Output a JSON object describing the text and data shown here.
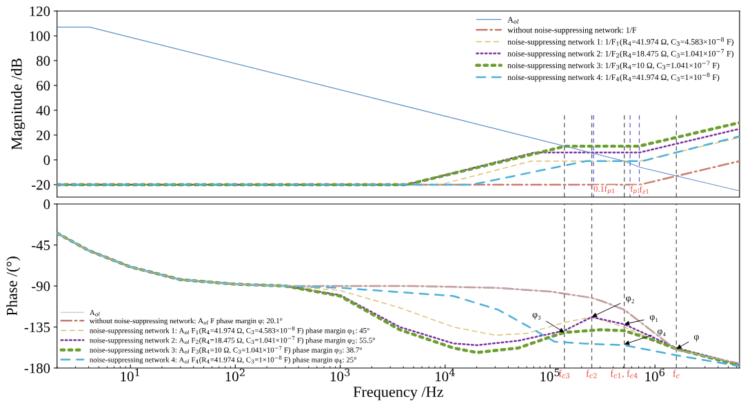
{
  "chart_data": [
    {
      "type": "line",
      "log": "x",
      "ylabel": "Magnitude /dB",
      "xlim": [
        2,
        6400000
      ],
      "ylim": [
        -30,
        120
      ],
      "yticks": [
        -20,
        0,
        20,
        40,
        60,
        80,
        100,
        120
      ],
      "tick_labels": "y",
      "legend": "top right",
      "grid": false,
      "series": [
        {
          "name": "A$_{ol}$",
          "color": "#5b8fc9",
          "line_style": "solid",
          "x": [
            2,
            4.1,
            2800,
            510000,
            720000,
            6400000
          ],
          "values": [
            107,
            107,
            47,
            -1,
            -6,
            -25
          ]
        },
        {
          "name": "without noise-suppressing network: 1/F",
          "color": "#c97b6b",
          "line_style": "dashdot",
          "x": [
            2,
            720000,
            6400000
          ],
          "values": [
            -20,
            -20,
            -1
          ]
        },
        {
          "name": "noise-suppressing network 1: 1/F$_{1}$(R$_{4}$=41.974 Ω, C$_{3}$=4.583×10$^{−8}$ F)",
          "color": "#d9bd6a",
          "line_style": "dashed",
          "x": [
            2,
            9000,
            66000,
            720000,
            6400000
          ],
          "values": [
            -20,
            -20,
            -1,
            -1,
            18
          ]
        },
        {
          "name": "noise-suppressing network 2: 1/F$_{2}$(R$_{4}$=18.475 Ω, C$_{3}$=1.041×10$^{−7}$ F)",
          "color": "#7b2fa0",
          "line_style": "dotted",
          "x": [
            2,
            4300,
            72000,
            720000,
            6400000
          ],
          "values": [
            -20,
            -20,
            6,
            6,
            25
          ]
        },
        {
          "name": "noise-suppressing network 3: 1/F$_{3}$(R$_{4}$=10 Ω, C$_{3}$=1.041×10$^{−7}$ F)",
          "color": "#6b9e2f",
          "line_style": "dotted",
          "x": [
            2,
            4300,
            140000,
            700000,
            6400000
          ],
          "values": [
            -20,
            -20,
            11,
            11,
            30
          ]
        },
        {
          "name": "noise-suppressing network 4: 1/F$_{4}$(R$_{4}$=41.974 Ω, C$_{3}$=1×10$^{−8}$ F)",
          "color": "#4bb0d8",
          "line_style": "dashed",
          "x": [
            2,
            18000,
            220000,
            760000,
            6400000
          ],
          "values": [
            -20,
            -20,
            -1,
            -1,
            19
          ]
        }
      ],
      "ref_lines": [
        {
          "axis": "x",
          "value": 137000,
          "label": null,
          "color": "#555555",
          "line_style": "dashed"
        },
        {
          "axis": "x",
          "value": 250000,
          "label": null,
          "color": "#555555",
          "line_style": "dashed"
        },
        {
          "axis": "x",
          "value": 260000,
          "label": "0.1f$_{p1}$",
          "color": "#5a5ad0",
          "line_style": "dashed"
        },
        {
          "axis": "x",
          "value": 510000,
          "label": null,
          "color": "#555555",
          "line_style": "dashed"
        },
        {
          "axis": "x",
          "value": 580000,
          "label": "f$_{p1}$",
          "color": "#5a5ad0",
          "line_style": "dashed"
        },
        {
          "axis": "x",
          "value": 710000,
          "label": "f$_{z1}$",
          "color": "#5a5ad0",
          "line_style": "dashed"
        },
        {
          "axis": "x",
          "value": 1600000,
          "label": null,
          "color": "#555555",
          "line_style": "dashed"
        }
      ]
    },
    {
      "type": "line",
      "log": "x",
      "xlabel": "Frequency /Hz",
      "ylabel": "Phase /(°)",
      "xlim": [
        2,
        6400000
      ],
      "ylim": [
        -180,
        0
      ],
      "yticks": [
        -180,
        -135,
        -90,
        -45,
        0
      ],
      "xticks": [
        {
          "value": 10,
          "label": "10$^{1}$"
        },
        {
          "value": 100,
          "label": "10$^{2}$"
        },
        {
          "value": 1000,
          "label": "10$^{3}$"
        },
        {
          "value": 10000,
          "label": "10$^{4}$"
        },
        {
          "value": 100000,
          "label": "10$^{5}$"
        },
        {
          "value": 1000000,
          "label": "10$^{6}$"
        }
      ],
      "legend": "bottom left",
      "grid": false,
      "series": [
        {
          "name": "A$_{ol}$",
          "color": "#b8b8c8",
          "line_style": "solid",
          "x": [
            2,
            4,
            10,
            30,
            100,
            300,
            5000,
            30000,
            100000,
            250000,
            320000,
            510000,
            1600000,
            6400000
          ],
          "values": [
            -32,
            -51,
            -69,
            -83,
            -88,
            -90,
            -90,
            -92,
            -96,
            -103,
            -107,
            -116,
            -160,
            -175
          ]
        },
        {
          "name": "without noise-suppressing network: A$_{ol}$ F phase margin φ: 20.1°",
          "color": "#c97b6b",
          "line_style": "dashdot",
          "x": [
            2,
            4,
            10,
            30,
            100,
            300,
            5000,
            30000,
            100000,
            250000,
            320000,
            510000,
            1600000,
            6400000
          ],
          "values": [
            -32,
            -51,
            -69,
            -83,
            -88,
            -90,
            -90,
            -92,
            -96,
            -103,
            -107,
            -116,
            -160,
            -175
          ]
        },
        {
          "name": "noise-suppressing network 1: A$_{ol}$ F$_{1}$(R$_{4}$=41.974 Ω, C$_{3}$=4.583×10$^{−8}$ F) phase margin φ$_{1}$: 45°",
          "color": "#d9bd6a",
          "line_style": "dashed",
          "x": [
            2,
            4,
            10,
            30,
            100,
            300,
            1000,
            3500,
            12000,
            30000,
            60000,
            137000,
            250000,
            510000,
            1600000,
            6400000
          ],
          "values": [
            -32,
            -51,
            -69,
            -83,
            -88,
            -90,
            -95,
            -113,
            -135,
            -144,
            -142,
            -130,
            -124,
            -135,
            -160,
            -176
          ]
        },
        {
          "name": "noise-suppressing network 2: A$_{ol}$ F$_{2}$(R$_{4}$=18.475 Ω, C$_{3}$=1.041×10$^{−7}$ F) phase margin φ$_{2}$: 55.5°",
          "color": "#7b2fa0",
          "line_style": "dotted",
          "x": [
            2,
            4,
            10,
            30,
            100,
            300,
            1000,
            3700,
            12000,
            20000,
            50000,
            137000,
            250000,
            510000,
            1600000,
            6400000
          ],
          "values": [
            -32,
            -51,
            -69,
            -83,
            -88,
            -90,
            -100,
            -135,
            -153,
            -155,
            -150,
            -139,
            -124,
            -132,
            -158,
            -176
          ]
        },
        {
          "name": "noise-suppressing network 3: A$_{ol}$ F$_{3}$(R$_{4}$=10 Ω, C$_{3}$=1.041×10$^{−7}$ F) phase margin φ$_{3}$: 38.7°",
          "color": "#6b9e2f",
          "line_style": "dotted",
          "x": [
            2,
            4,
            10,
            30,
            100,
            300,
            1000,
            3700,
            12000,
            20000,
            50000,
            100000,
            137000,
            300000,
            510000,
            1000000,
            1600000,
            6400000
          ],
          "values": [
            -32,
            -51,
            -69,
            -83,
            -88,
            -90,
            -101,
            -138,
            -158,
            -163,
            -158,
            -146,
            -141,
            -138,
            -139,
            -150,
            -159,
            -177
          ]
        },
        {
          "name": "noise-suppressing network 4: A$_{ol}$ F$_{4}$(R$_{4}$=41.974 Ω, C$_{3}$=1×10$^{−8}$ F) phase margin φ$_{4}$: 25°",
          "color": "#4bb0d8",
          "line_style": "dashed",
          "x": [
            2,
            4,
            10,
            30,
            100,
            300,
            1000,
            12000,
            32000,
            68000,
            110000,
            200000,
            510000,
            1600000,
            6400000
          ],
          "values": [
            -32,
            -51,
            -69,
            -83,
            -88,
            -90,
            -92,
            -101,
            -116,
            -137,
            -151,
            -153,
            -155,
            -166,
            -178
          ]
        }
      ],
      "ref_lines": [
        {
          "axis": "x",
          "value": 137000,
          "label": "f$_{c3}$",
          "color": "#555555",
          "line_style": "dashed"
        },
        {
          "axis": "x",
          "value": 250000,
          "label": "f$_{c2}$",
          "color": "#555555",
          "line_style": "dashed"
        },
        {
          "axis": "x",
          "value": 510000,
          "label": "f$_{c1}$, f$_{c4}$",
          "color": "#555555",
          "line_style": "dashed"
        },
        {
          "axis": "x",
          "value": 1600000,
          "label": "f$_{c}$",
          "color": "#555555",
          "line_style": "dashed"
        }
      ],
      "annotations": [
        {
          "text": "φ₃",
          "x": 137000,
          "y": -141
        },
        {
          "text": "φ₂",
          "x": 250000,
          "y": -124
        },
        {
          "text": "φ₁",
          "x": 510000,
          "y": -132
        },
        {
          "text": "φ₄",
          "x": 510000,
          "y": -154
        },
        {
          "text": "φ",
          "x": 1600000,
          "y": -159
        }
      ]
    }
  ]
}
